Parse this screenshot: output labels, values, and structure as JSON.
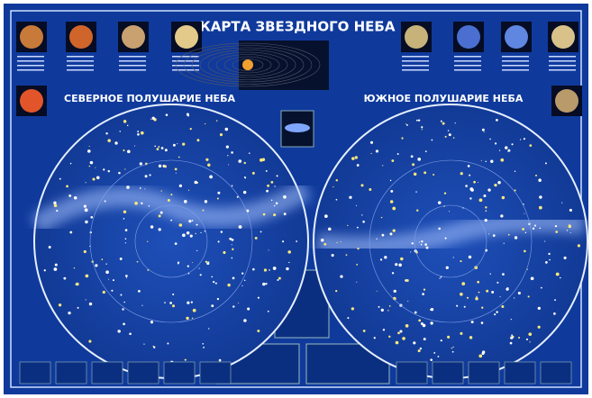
{
  "header": {
    "title": "КАРТА ЗВЕЗДНОГО НЕБА"
  },
  "hemispheres": {
    "northern": "СЕВЕРНОЕ ПОЛУШАРИЕ НЕБА",
    "southern": "ЮЖНОЕ ПОЛУШАРИЕ НЕБА"
  }
}
